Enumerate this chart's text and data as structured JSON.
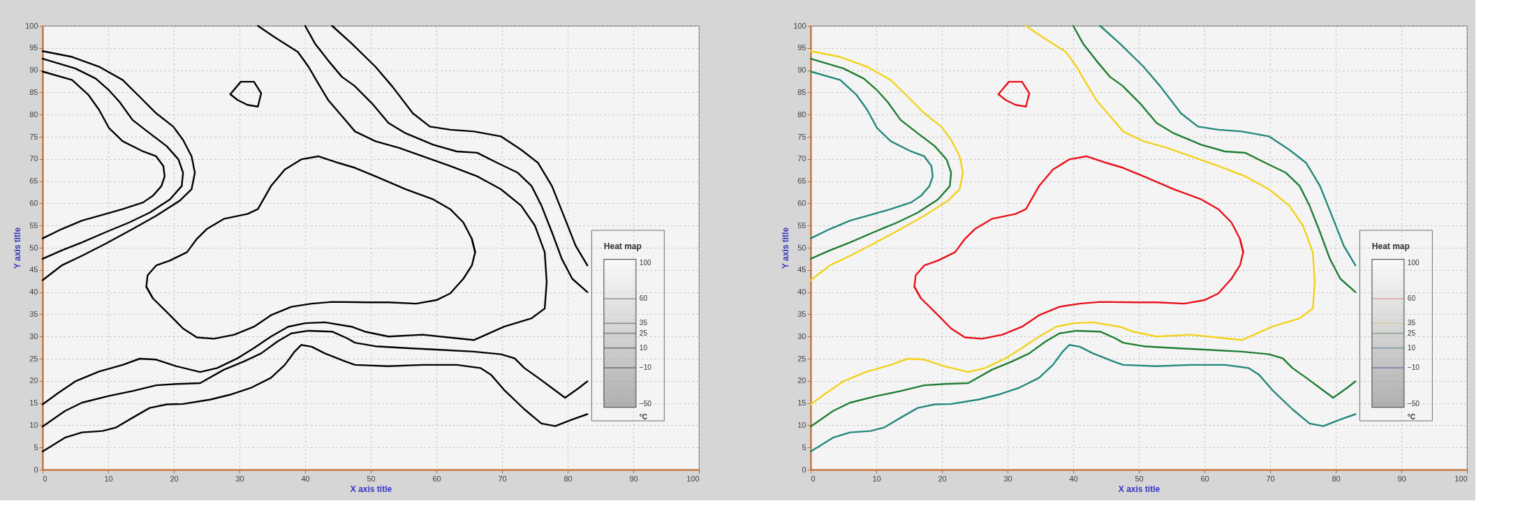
{
  "chart_data": [
    {
      "type": "line",
      "xlabel": "X axis title",
      "ylabel": "Y axis title",
      "xlim": [
        0,
        100
      ],
      "ylim": [
        0,
        100
      ],
      "xticks": [
        0,
        10,
        20,
        30,
        40,
        50,
        60,
        70,
        80,
        90,
        100
      ],
      "yticks": [
        0,
        5,
        10,
        15,
        20,
        25,
        30,
        35,
        40,
        45,
        50,
        55,
        60,
        65,
        70,
        75,
        80,
        85,
        90,
        95,
        100
      ],
      "grid": true,
      "legend_title": "Heat map",
      "clabel": "°C",
      "clim": [
        -50,
        100
      ],
      "cticks": [
        100,
        60,
        35,
        25,
        10,
        -10,
        -50
      ],
      "colors": [
        null,
        "#505050",
        "#505050",
        "#505050",
        "#505050",
        "#505050",
        null
      ],
      "series": [
        {
          "color": "#000000",
          "x": [
            15.8,
            16.8,
            19.4,
            21.4,
            23.5,
            26.1,
            29.2,
            32.2,
            34.8,
            37.9,
            41.0,
            44.1,
            49.6,
            52.7,
            56.9,
            60.0,
            62.1,
            64.1,
            65.4,
            65.9,
            65.4
          ],
          "values": [
            41.2,
            38.6,
            34.8,
            31.8,
            29.8,
            29.5,
            30.4,
            32.2,
            34.8,
            36.7,
            37.4,
            37.8,
            37.7,
            37.7,
            37.4,
            38.2,
            39.7,
            43.0,
            46.0,
            49.0,
            52.0
          ]
        },
        {
          "color": "#000000",
          "x": [
            65.9,
            65.4,
            64.1,
            62.1,
            59.5,
            55.3,
            50.7,
            47.6,
            45.1,
            42.0,
            39.4,
            36.9,
            34.8,
            32.8,
            31.2,
            27.6,
            25.0,
            23.5,
            22.0,
            19.4,
            17.3,
            16.0,
            15.8,
            16.8
          ],
          "values": [
            49.0,
            52.0,
            55.7,
            58.7,
            60.9,
            63.2,
            66.1,
            68.0,
            69.1,
            70.6,
            69.9,
            67.6,
            63.9,
            58.7,
            57.6,
            56.5,
            54.2,
            52.0,
            49.0,
            47.1,
            46.0,
            43.8,
            41.2,
            38.6
          ]
        },
        {
          "color": "#000000",
          "x": [
            28.6,
            30.2,
            32.2,
            33.3
          ],
          "values": [
            84.6,
            87.4,
            87.4,
            84.8
          ]
        },
        {
          "color": "#000000",
          "x": [
            28.6,
            29.7,
            31.2,
            32.8,
            33.3
          ],
          "values": [
            84.6,
            83.3,
            82.2,
            81.8,
            84.8
          ]
        },
        {
          "color": "#000000",
          "x": [
            0,
            4.5,
            8.6,
            12.2,
            14.8,
            17.3,
            19.9,
            21.4,
            22.7,
            23.2,
            22.7,
            20.9,
            17.3,
            13.7,
            9.6,
            6.0,
            2.9,
            0
          ],
          "values": [
            94.3,
            93.0,
            90.8,
            87.8,
            84.0,
            80.3,
            77.3,
            74.3,
            70.6,
            66.9,
            63.2,
            60.6,
            57.2,
            54.2,
            50.9,
            48.2,
            46.0,
            42.7
          ]
        },
        {
          "color": "#000000",
          "x": [
            0,
            5.0,
            8.1,
            10.1,
            11.7,
            13.7,
            16.3,
            18.9,
            20.7,
            21.4,
            21.2,
            19.4,
            16.3,
            13.2,
            9.6,
            6.0,
            2.9,
            0
          ],
          "values": [
            92.6,
            90.4,
            88.1,
            85.5,
            82.9,
            78.8,
            75.8,
            72.9,
            69.9,
            66.9,
            63.9,
            60.9,
            57.9,
            55.7,
            53.5,
            51.2,
            49.4,
            47.5
          ]
        },
        {
          "color": "#000000",
          "x": [
            0,
            4.5,
            7.0,
            8.6,
            10.1,
            12.2,
            15.3,
            17.3,
            18.4,
            18.6,
            18.1,
            16.8,
            15.3,
            12.2,
            9.6,
            6.0,
            2.9,
            0
          ],
          "values": [
            89.7,
            87.8,
            84.4,
            81.1,
            77.0,
            74.0,
            71.7,
            70.6,
            68.4,
            66.1,
            63.9,
            61.7,
            60.2,
            58.7,
            57.6,
            56.1,
            54.2,
            52.1
          ]
        },
        {
          "color": "#000000",
          "x": [
            32.8,
            35.3,
            38.9,
            40.5,
            42.0,
            43.5,
            46.1,
            47.6,
            50.7,
            54.3,
            57.9,
            62.1,
            66.2,
            69.8,
            72.9,
            75.0,
            76.5,
            76.8,
            76.5,
            74.5,
            70.3,
            65.7,
            63.1,
            57.9,
            52.7,
            49.1,
            47.1,
            43.0,
            40.0,
            37.4,
            34.8,
            32.2,
            29.7,
            26.6,
            24.0,
            20.4,
            17.3,
            14.8,
            12.2,
            8.6,
            5.0,
            2.4,
            0
          ],
          "values": [
            100,
            97.5,
            94.1,
            90.8,
            87.0,
            83.3,
            78.8,
            76.2,
            74.0,
            72.5,
            70.6,
            68.4,
            66.1,
            63.2,
            59.5,
            55.0,
            49.0,
            42.3,
            36.3,
            34.1,
            32.2,
            29.2,
            29.6,
            30.4,
            30.0,
            31.1,
            32.2,
            33.2,
            33.0,
            32.2,
            30.0,
            27.4,
            25.1,
            22.9,
            22.0,
            23.3,
            24.8,
            25.0,
            23.6,
            22.1,
            19.9,
            17.3,
            14.7
          ]
        },
        {
          "color": "#000000",
          "x": [
            40.0,
            41.5,
            43.5,
            45.6,
            47.5,
            50.2,
            52.7,
            55.3,
            59.5,
            63.1,
            66.2,
            69.3,
            72.4,
            74.5,
            76.0,
            77.6,
            79.1,
            80.7,
            83.0
          ],
          "values": [
            100,
            96.0,
            92.2,
            88.5,
            86.5,
            82.5,
            78.1,
            75.8,
            73.2,
            71.7,
            71.4,
            69.1,
            66.9,
            63.9,
            59.5,
            53.5,
            47.5,
            43.0,
            40.0
          ]
        },
        {
          "color": "#000000",
          "x": [
            83.0,
            81.7,
            79.6,
            77.6,
            75.5,
            73.4,
            71.9,
            69.8,
            65.7,
            60.5,
            55.3,
            50.7,
            47.6,
            46.4,
            44.1,
            40.5,
            37.9,
            35.8,
            33.3,
            30.7,
            27.6,
            24.0,
            20.4,
            17.3,
            13.7,
            10.1,
            6.0,
            3.4,
            0
          ],
          "values": [
            19.9,
            18.4,
            16.2,
            18.4,
            20.7,
            22.9,
            25.1,
            26.0,
            26.6,
            27.0,
            27.4,
            27.8,
            28.6,
            29.6,
            31.1,
            31.3,
            30.7,
            28.9,
            26.2,
            24.4,
            22.5,
            19.5,
            19.3,
            19.0,
            17.7,
            16.6,
            15.1,
            13.2,
            9.7
          ]
        },
        {
          "color": "#000000",
          "x": [
            44.1,
            47.1,
            50.7,
            53.3,
            56.4,
            59.0,
            62.1,
            65.7,
            69.8,
            72.9,
            75.5,
            77.6,
            79.6,
            81.2,
            83.0
          ],
          "values": [
            100,
            96.0,
            90.8,
            86.3,
            80.3,
            77.3,
            76.6,
            76.2,
            75.1,
            72.1,
            69.1,
            63.9,
            56.5,
            50.5,
            46.0
          ]
        },
        {
          "color": "#000000",
          "x": [
            83.0,
            80.7,
            78.1,
            76.0,
            73.4,
            70.3,
            68.3,
            66.7,
            63.1,
            57.9,
            52.7,
            47.6,
            46.1,
            43.0,
            41.0,
            39.4,
            38.4,
            36.9,
            34.8,
            31.7,
            28.6,
            25.6,
            21.4,
            18.9,
            16.3,
            13.7,
            11.2,
            9.1,
            6.0,
            3.4,
            0
          ],
          "values": [
            12.5,
            11.3,
            9.8,
            10.4,
            13.6,
            18.0,
            21.4,
            22.9,
            23.6,
            23.6,
            23.3,
            23.6,
            24.4,
            26.2,
            27.7,
            28.1,
            26.6,
            23.6,
            20.7,
            18.4,
            16.9,
            15.8,
            14.8,
            14.7,
            13.9,
            11.7,
            9.5,
            8.7,
            8.4,
            7.2,
            4.1
          ]
        }
      ]
    },
    {
      "type": "line",
      "xlabel": "X axis title",
      "ylabel": "Y axis title",
      "xlim": [
        0,
        100
      ],
      "ylim": [
        0,
        100
      ],
      "xticks": [
        0,
        10,
        20,
        30,
        40,
        50,
        60,
        70,
        80,
        90,
        100
      ],
      "yticks": [
        0,
        5,
        10,
        15,
        20,
        25,
        30,
        35,
        40,
        45,
        50,
        55,
        60,
        65,
        70,
        75,
        80,
        85,
        90,
        95,
        100
      ],
      "grid": true,
      "legend_title": "Heat map",
      "clabel": "°C",
      "clim": [
        -50,
        100
      ],
      "cticks": [
        100,
        60,
        35,
        25,
        10,
        -10,
        -50
      ],
      "colors": [
        null,
        "#e87070",
        "#e8d47a",
        "#5f8f5f",
        "#5f95a0",
        "#5a64c0",
        null
      ],
      "series": [
        {
          "color": "#e8101a",
          "x": [
            15.8,
            16.8,
            19.4,
            21.4,
            23.5,
            26.1,
            29.2,
            32.2,
            34.8,
            37.9,
            41.0,
            44.1,
            49.6,
            52.7,
            56.9,
            60.0,
            62.1,
            64.1,
            65.4,
            65.9,
            65.4
          ],
          "values": [
            41.2,
            38.6,
            34.8,
            31.8,
            29.8,
            29.5,
            30.4,
            32.2,
            34.8,
            36.7,
            37.4,
            37.8,
            37.7,
            37.7,
            37.4,
            38.2,
            39.7,
            43.0,
            46.0,
            49.0,
            52.0
          ]
        },
        {
          "color": "#e8101a",
          "x": [
            65.9,
            65.4,
            64.1,
            62.1,
            59.5,
            55.3,
            50.7,
            47.6,
            45.1,
            42.0,
            39.4,
            36.9,
            34.8,
            32.8,
            31.2,
            27.6,
            25.0,
            23.5,
            22.0,
            19.4,
            17.3,
            16.0,
            15.8,
            16.8
          ],
          "values": [
            49.0,
            52.0,
            55.7,
            58.7,
            60.9,
            63.2,
            66.1,
            68.0,
            69.1,
            70.6,
            69.9,
            67.6,
            63.9,
            58.7,
            57.6,
            56.5,
            54.2,
            52.0,
            49.0,
            47.1,
            46.0,
            43.8,
            41.2,
            38.6
          ]
        },
        {
          "color": "#e8101a",
          "x": [
            28.6,
            30.2,
            32.2,
            33.3
          ],
          "values": [
            84.6,
            87.4,
            87.4,
            84.8
          ]
        },
        {
          "color": "#e8101a",
          "x": [
            28.6,
            29.7,
            31.2,
            32.8,
            33.3
          ],
          "values": [
            84.6,
            83.3,
            82.2,
            81.8,
            84.8
          ]
        },
        {
          "color": "#f2d21c",
          "x": [
            0,
            4.5,
            8.6,
            12.2,
            14.8,
            17.3,
            19.9,
            21.4,
            22.7,
            23.2,
            22.7,
            20.9,
            17.3,
            13.7,
            9.6,
            6.0,
            2.9,
            0
          ],
          "values": [
            94.3,
            93.0,
            90.8,
            87.8,
            84.0,
            80.3,
            77.3,
            74.3,
            70.6,
            66.9,
            63.2,
            60.6,
            57.2,
            54.2,
            50.9,
            48.2,
            46.0,
            42.7
          ]
        },
        {
          "color": "#1e7d32",
          "x": [
            0,
            5.0,
            8.1,
            10.1,
            11.7,
            13.7,
            16.3,
            18.9,
            20.7,
            21.4,
            21.2,
            19.4,
            16.3,
            13.2,
            9.6,
            6.0,
            2.9,
            0
          ],
          "values": [
            92.6,
            90.4,
            88.1,
            85.5,
            82.9,
            78.8,
            75.8,
            72.9,
            69.9,
            66.9,
            63.9,
            60.9,
            57.9,
            55.7,
            53.5,
            51.2,
            49.4,
            47.5
          ]
        },
        {
          "color": "#23877c",
          "x": [
            0,
            4.5,
            7.0,
            8.6,
            10.1,
            12.2,
            15.3,
            17.3,
            18.4,
            18.6,
            18.1,
            16.8,
            15.3,
            12.2,
            9.6,
            6.0,
            2.9,
            0
          ],
          "values": [
            89.7,
            87.8,
            84.4,
            81.1,
            77.0,
            74.0,
            71.7,
            70.6,
            68.4,
            66.1,
            63.9,
            61.7,
            60.2,
            58.7,
            57.6,
            56.1,
            54.2,
            52.1
          ]
        },
        {
          "color": "#f2d21c",
          "x": [
            32.8,
            35.3,
            38.9,
            40.5,
            42.0,
            43.5,
            46.1,
            47.6,
            50.7,
            54.3,
            57.9,
            62.1,
            66.2,
            69.8,
            72.9,
            75.0,
            76.5,
            76.8,
            76.5,
            74.5,
            70.3,
            65.7,
            63.1,
            57.9,
            52.7,
            49.1,
            47.1,
            43.0,
            40.0,
            37.4,
            34.8,
            32.2,
            29.7,
            26.6,
            24.0,
            20.4,
            17.3,
            14.8,
            12.2,
            8.6,
            5.0,
            2.4,
            0
          ],
          "values": [
            100,
            97.5,
            94.1,
            90.8,
            87.0,
            83.3,
            78.8,
            76.2,
            74.0,
            72.5,
            70.6,
            68.4,
            66.1,
            63.2,
            59.5,
            55.0,
            49.0,
            42.3,
            36.3,
            34.1,
            32.2,
            29.2,
            29.6,
            30.4,
            30.0,
            31.1,
            32.2,
            33.2,
            33.0,
            32.2,
            30.0,
            27.4,
            25.1,
            22.9,
            22.0,
            23.3,
            24.8,
            25.0,
            23.6,
            22.1,
            19.9,
            17.3,
            14.7
          ]
        },
        {
          "color": "#1e7d32",
          "x": [
            40.0,
            41.5,
            43.5,
            45.6,
            47.5,
            50.2,
            52.7,
            55.3,
            59.5,
            63.1,
            66.2,
            69.3,
            72.4,
            74.5,
            76.0,
            77.6,
            79.1,
            80.7,
            83.0
          ],
          "values": [
            100,
            96.0,
            92.2,
            88.5,
            86.5,
            82.5,
            78.1,
            75.8,
            73.2,
            71.7,
            71.4,
            69.1,
            66.9,
            63.9,
            59.5,
            53.5,
            47.5,
            43.0,
            40.0
          ]
        },
        {
          "color": "#1e7d32",
          "x": [
            83.0,
            81.7,
            79.6,
            77.6,
            75.5,
            73.4,
            71.9,
            69.8,
            65.7,
            60.5,
            55.3,
            50.7,
            47.6,
            46.4,
            44.1,
            40.5,
            37.9,
            35.8,
            33.3,
            30.7,
            27.6,
            24.0,
            20.4,
            17.3,
            13.7,
            10.1,
            6.0,
            3.4,
            0
          ],
          "values": [
            19.9,
            18.4,
            16.2,
            18.4,
            20.7,
            22.9,
            25.1,
            26.0,
            26.6,
            27.0,
            27.4,
            27.8,
            28.6,
            29.6,
            31.1,
            31.3,
            30.7,
            28.9,
            26.2,
            24.4,
            22.5,
            19.5,
            19.3,
            19.0,
            17.7,
            16.6,
            15.1,
            13.2,
            9.7
          ]
        },
        {
          "color": "#23877c",
          "x": [
            44.1,
            47.1,
            50.7,
            53.3,
            56.4,
            59.0,
            62.1,
            65.7,
            69.8,
            72.9,
            75.5,
            77.6,
            79.6,
            81.2,
            83.0
          ],
          "values": [
            100,
            96.0,
            90.8,
            86.3,
            80.3,
            77.3,
            76.6,
            76.2,
            75.1,
            72.1,
            69.1,
            63.9,
            56.5,
            50.5,
            46.0
          ]
        },
        {
          "color": "#23877c",
          "x": [
            83.0,
            80.7,
            78.1,
            76.0,
            73.4,
            70.3,
            68.3,
            66.7,
            63.1,
            57.9,
            52.7,
            47.6,
            46.1,
            43.0,
            41.0,
            39.4,
            38.4,
            36.9,
            34.8,
            31.7,
            28.6,
            25.6,
            21.4,
            18.9,
            16.3,
            13.7,
            11.2,
            9.1,
            6.0,
            3.4,
            0
          ],
          "values": [
            12.5,
            11.3,
            9.8,
            10.4,
            13.6,
            18.0,
            21.4,
            22.9,
            23.6,
            23.6,
            23.3,
            23.6,
            24.4,
            26.2,
            27.7,
            28.1,
            26.6,
            23.6,
            20.7,
            18.4,
            16.9,
            15.8,
            14.8,
            14.7,
            13.9,
            11.7,
            9.5,
            8.7,
            8.4,
            7.2,
            4.1
          ]
        }
      ]
    }
  ]
}
